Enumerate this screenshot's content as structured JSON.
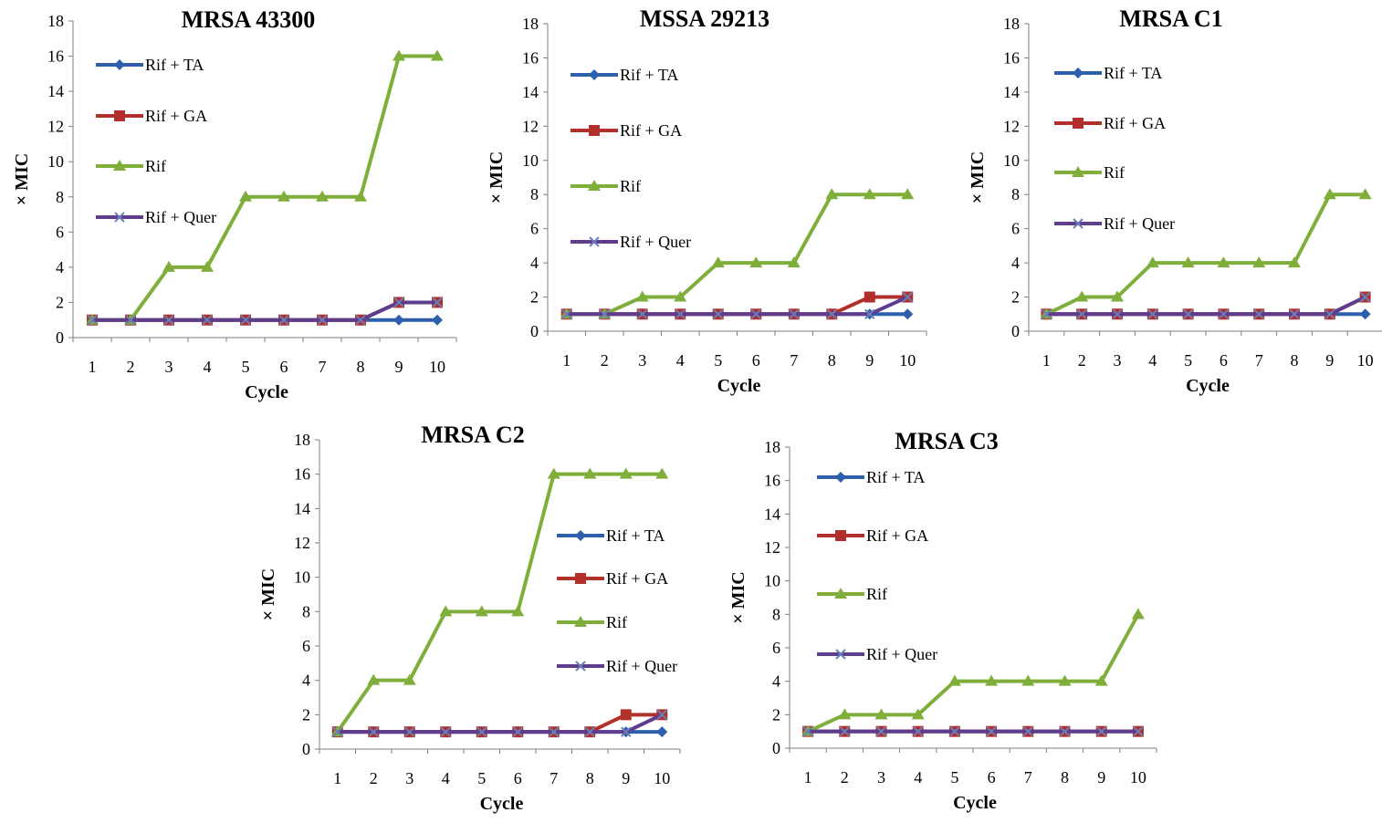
{
  "chart_data": [
    {
      "type": "line",
      "title": "MRSA 43300",
      "xlabel": "Cycle",
      "ylabel": "× MIC",
      "x": [
        1,
        2,
        3,
        4,
        5,
        6,
        7,
        8,
        9,
        10
      ],
      "ylim": [
        0,
        18
      ],
      "yticks": [
        0,
        2,
        4,
        6,
        8,
        10,
        12,
        14,
        16,
        18
      ],
      "grid": false,
      "legend_position": "top-left",
      "series": [
        {
          "name": "Rif + TA",
          "values": [
            1,
            1,
            1,
            1,
            1,
            1,
            1,
            1,
            1,
            1
          ]
        },
        {
          "name": "Rif + GA",
          "values": [
            1,
            1,
            1,
            1,
            1,
            1,
            1,
            1,
            2,
            2
          ]
        },
        {
          "name": "Rif",
          "values": [
            1,
            1,
            4,
            4,
            8,
            8,
            8,
            8,
            16,
            16
          ]
        },
        {
          "name": "Rif + Quer",
          "values": [
            1,
            1,
            1,
            1,
            1,
            1,
            1,
            1,
            2,
            2
          ]
        }
      ]
    },
    {
      "type": "line",
      "title": "MSSA 29213",
      "xlabel": "Cycle",
      "ylabel": "× MIC",
      "x": [
        1,
        2,
        3,
        4,
        5,
        6,
        7,
        8,
        9,
        10
      ],
      "ylim": [
        0,
        18
      ],
      "yticks": [
        0,
        2,
        4,
        6,
        8,
        10,
        12,
        14,
        16,
        18
      ],
      "grid": false,
      "legend_position": "top-left",
      "series": [
        {
          "name": "Rif + TA",
          "values": [
            1,
            1,
            1,
            1,
            1,
            1,
            1,
            1,
            1,
            1
          ]
        },
        {
          "name": "Rif + GA",
          "values": [
            1,
            1,
            1,
            1,
            1,
            1,
            1,
            1,
            2,
            2
          ]
        },
        {
          "name": "Rif",
          "values": [
            1,
            1,
            2,
            2,
            4,
            4,
            4,
            8,
            8,
            8
          ]
        },
        {
          "name": "Rif + Quer",
          "values": [
            1,
            1,
            1,
            1,
            1,
            1,
            1,
            1,
            1,
            2
          ]
        }
      ]
    },
    {
      "type": "line",
      "title": "MRSA C1",
      "xlabel": "Cycle",
      "ylabel": "× MIC",
      "x": [
        1,
        2,
        3,
        4,
        5,
        6,
        7,
        8,
        9,
        10
      ],
      "ylim": [
        0,
        18
      ],
      "yticks": [
        0,
        2,
        4,
        6,
        8,
        10,
        12,
        14,
        16,
        18
      ],
      "grid": false,
      "legend_position": "top-left",
      "series": [
        {
          "name": "Rif + TA",
          "values": [
            1,
            1,
            1,
            1,
            1,
            1,
            1,
            1,
            1,
            1
          ]
        },
        {
          "name": "Rif + GA",
          "values": [
            1,
            1,
            1,
            1,
            1,
            1,
            1,
            1,
            1,
            2
          ]
        },
        {
          "name": "Rif",
          "values": [
            1,
            2,
            2,
            4,
            4,
            4,
            4,
            4,
            8,
            8
          ]
        },
        {
          "name": "Rif + Quer",
          "values": [
            1,
            1,
            1,
            1,
            1,
            1,
            1,
            1,
            1,
            2
          ]
        }
      ]
    },
    {
      "type": "line",
      "title": "MRSA C2",
      "xlabel": "Cycle",
      "ylabel": "× MIC",
      "x": [
        1,
        2,
        3,
        4,
        5,
        6,
        7,
        8,
        9,
        10
      ],
      "ylim": [
        0,
        18
      ],
      "yticks": [
        0,
        2,
        4,
        6,
        8,
        10,
        12,
        14,
        16,
        18
      ],
      "grid": false,
      "legend_position": "right",
      "series": [
        {
          "name": "Rif + TA",
          "values": [
            1,
            1,
            1,
            1,
            1,
            1,
            1,
            1,
            1,
            1
          ]
        },
        {
          "name": "Rif + GA",
          "values": [
            1,
            1,
            1,
            1,
            1,
            1,
            1,
            1,
            2,
            2
          ]
        },
        {
          "name": "Rif",
          "values": [
            1,
            4,
            4,
            8,
            8,
            8,
            16,
            16,
            16,
            16
          ]
        },
        {
          "name": "Rif + Quer",
          "values": [
            1,
            1,
            1,
            1,
            1,
            1,
            1,
            1,
            1,
            2
          ]
        }
      ]
    },
    {
      "type": "line",
      "title": "MRSA C3",
      "xlabel": "Cycle",
      "ylabel": "× MIC",
      "x": [
        1,
        2,
        3,
        4,
        5,
        6,
        7,
        8,
        9,
        10
      ],
      "ylim": [
        0,
        18
      ],
      "yticks": [
        0,
        2,
        4,
        6,
        8,
        10,
        12,
        14,
        16,
        18
      ],
      "grid": false,
      "legend_position": "top-left",
      "series": [
        {
          "name": "Rif + TA",
          "values": [
            1,
            1,
            1,
            1,
            1,
            1,
            1,
            1,
            1,
            1
          ]
        },
        {
          "name": "Rif + GA",
          "values": [
            1,
            1,
            1,
            1,
            1,
            1,
            1,
            1,
            1,
            1
          ]
        },
        {
          "name": "Rif",
          "values": [
            1,
            2,
            2,
            2,
            4,
            4,
            4,
            4,
            4,
            8
          ]
        },
        {
          "name": "Rif + Quer",
          "values": [
            1,
            1,
            1,
            1,
            1,
            1,
            1,
            1,
            1,
            1
          ]
        }
      ]
    }
  ],
  "series_styles": [
    {
      "color": "#2E5FAC",
      "marker": "diamond"
    },
    {
      "color": "#B2302B",
      "marker": "square"
    },
    {
      "color": "#7FAF3A",
      "marker": "triangle"
    },
    {
      "color": "#5E3C8E",
      "marker": "x"
    }
  ]
}
